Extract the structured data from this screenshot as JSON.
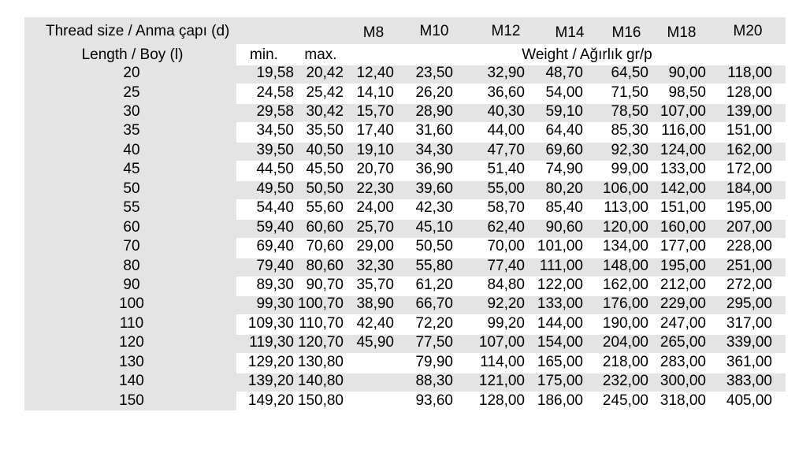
{
  "header": {
    "thread_size_label": "Thread size / Anma çapı (d)",
    "length_label": "Length  / Boy (l)",
    "min_label": "min.",
    "max_label": "max.",
    "weight_label": "Weight  / Ağırlık  gr/p",
    "sizes": [
      "M8",
      "M10",
      "M12",
      "M14",
      "M16",
      "M18",
      "M20"
    ]
  },
  "rows": [
    {
      "length": "20",
      "min": "19,58",
      "max": "20,42",
      "weights": [
        "12,40",
        "23,50",
        "32,90",
        "48,70",
        "64,50",
        "90,00",
        "118,00"
      ]
    },
    {
      "length": "25",
      "min": "24,58",
      "max": "25,42",
      "weights": [
        "14,10",
        "26,20",
        "36,60",
        "54,00",
        "71,50",
        "98,50",
        "128,00"
      ]
    },
    {
      "length": "30",
      "min": "29,58",
      "max": "30,42",
      "weights": [
        "15,70",
        "28,90",
        "40,30",
        "59,10",
        "78,50",
        "107,00",
        "139,00"
      ]
    },
    {
      "length": "35",
      "min": "34,50",
      "max": "35,50",
      "weights": [
        "17,40",
        "31,60",
        "44,00",
        "64,40",
        "85,30",
        "116,00",
        "151,00"
      ]
    },
    {
      "length": "40",
      "min": "39,50",
      "max": "40,50",
      "weights": [
        "19,10",
        "34,30",
        "47,70",
        "69,60",
        "92,30",
        "124,00",
        "162,00"
      ]
    },
    {
      "length": "45",
      "min": "44,50",
      "max": "45,50",
      "weights": [
        "20,70",
        "36,90",
        "51,40",
        "74,90",
        "99,00",
        "133,00",
        "172,00"
      ]
    },
    {
      "length": "50",
      "min": "49,50",
      "max": "50,50",
      "weights": [
        "22,30",
        "39,60",
        "55,00",
        "80,20",
        "106,00",
        "142,00",
        "184,00"
      ]
    },
    {
      "length": "55",
      "min": "54,40",
      "max": "55,60",
      "weights": [
        "24,00",
        "42,30",
        "58,70",
        "85,40",
        "113,00",
        "151,00",
        "195,00"
      ]
    },
    {
      "length": "60",
      "min": "59,40",
      "max": "60,60",
      "weights": [
        "25,70",
        "45,10",
        "62,40",
        "90,60",
        "120,00",
        "160,00",
        "207,00"
      ]
    },
    {
      "length": "70",
      "min": "69,40",
      "max": "70,60",
      "weights": [
        "29,00",
        "50,50",
        "70,00",
        "101,00",
        "134,00",
        "177,00",
        "228,00"
      ]
    },
    {
      "length": "80",
      "min": "79,40",
      "max": "80,60",
      "weights": [
        "32,30",
        "55,80",
        "77,40",
        "111,00",
        "148,00",
        "195,00",
        "251,00"
      ]
    },
    {
      "length": "90",
      "min": "89,30",
      "max": "90,70",
      "weights": [
        "35,70",
        "61,20",
        "84,80",
        "122,00",
        "162,00",
        "212,00",
        "272,00"
      ]
    },
    {
      "length": "100",
      "min": "99,30",
      "max": "100,70",
      "weights": [
        "38,90",
        "66,70",
        "92,20",
        "133,00",
        "176,00",
        "229,00",
        "295,00"
      ]
    },
    {
      "length": "110",
      "min": "109,30",
      "max": "110,70",
      "weights": [
        "42,40",
        "72,20",
        "99,20",
        "144,00",
        "190,00",
        "247,00",
        "317,00"
      ]
    },
    {
      "length": "120",
      "min": "119,30",
      "max": "120,70",
      "weights": [
        "45,90",
        "77,50",
        "107,00",
        "154,00",
        "204,00",
        "265,00",
        "339,00"
      ]
    },
    {
      "length": "130",
      "min": "129,20",
      "max": "130,80",
      "weights": [
        "",
        "79,90",
        "114,00",
        "165,00",
        "218,00",
        "283,00",
        "361,00"
      ]
    },
    {
      "length": "140",
      "min": "139,20",
      "max": "140,80",
      "weights": [
        "",
        "88,30",
        "121,00",
        "175,00",
        "232,00",
        "300,00",
        "383,00"
      ]
    },
    {
      "length": "150",
      "min": "149,20",
      "max": "150,80",
      "weights": [
        "",
        "93,60",
        "128,00",
        "186,00",
        "245,00",
        "318,00",
        "405,00"
      ]
    }
  ],
  "colors": {
    "band": "#e4e4e4",
    "background": "#ffffff",
    "text": "#000000"
  }
}
